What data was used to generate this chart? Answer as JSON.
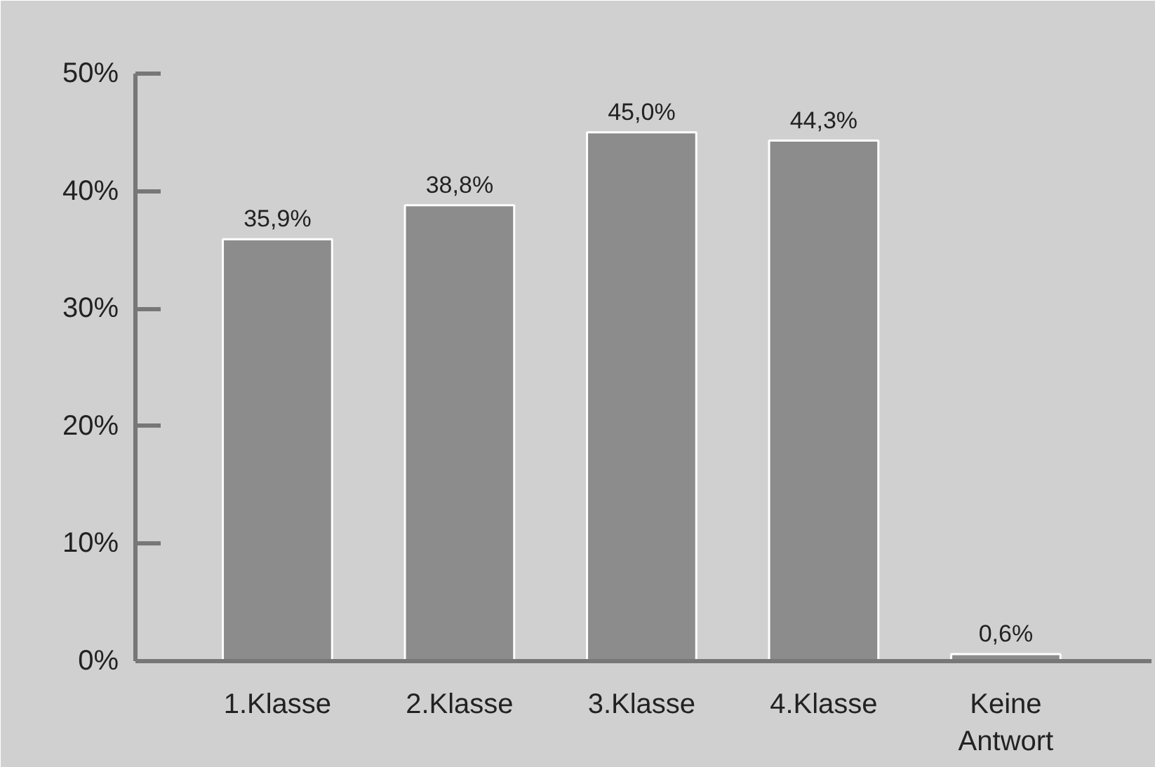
{
  "chart_data": {
    "type": "bar",
    "categories": [
      "1.Klasse",
      "2.Klasse",
      "3.Klasse",
      "4.Klasse",
      "Keine\nAntwort"
    ],
    "values": [
      35.9,
      38.8,
      45.0,
      44.3,
      0.6
    ],
    "value_labels": [
      "35,9%",
      "38,8%",
      "45,0%",
      "44,3%",
      "0,6%"
    ],
    "color": "#8c8c8c",
    "ylim": [
      0,
      50
    ],
    "yticks": [
      {
        "value": 0,
        "label": "0%"
      },
      {
        "value": 10,
        "label": "10%"
      },
      {
        "value": 20,
        "label": "20%"
      },
      {
        "value": 30,
        "label": "30%"
      },
      {
        "value": 40,
        "label": "40%"
      },
      {
        "value": 50,
        "label": "50%"
      }
    ],
    "grid": false
  }
}
